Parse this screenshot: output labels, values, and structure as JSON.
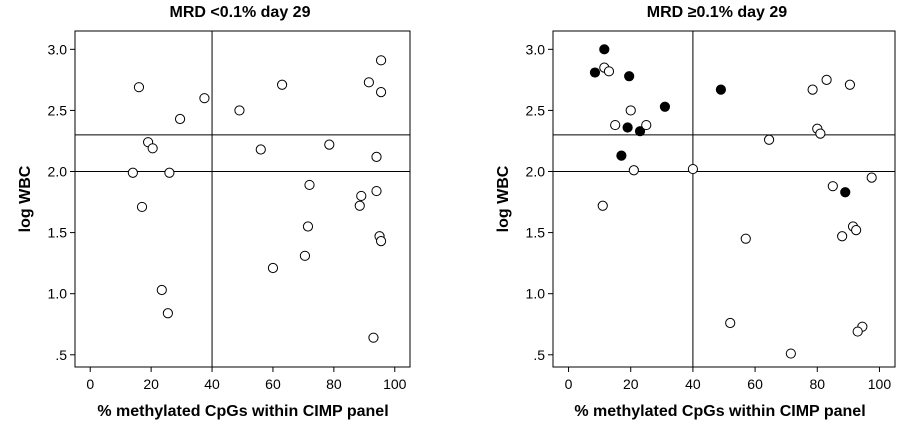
{
  "chart_data": [
    {
      "type": "scatter",
      "title": "MRD <0.1% day 29",
      "xlabel": "% methylated CpGs within CIMP panel",
      "ylabel": "log WBC",
      "xlim": [
        -5,
        105
      ],
      "ylim": [
        0.4,
        3.15
      ],
      "x_ticks": [
        0,
        20,
        40,
        60,
        80,
        100
      ],
      "x_tick_labels": [
        "0",
        "20",
        "40",
        "60",
        "80",
        "100"
      ],
      "y_ticks": [
        0.5,
        1.0,
        1.5,
        2.0,
        2.5,
        3.0
      ],
      "y_tick_labels": [
        ".5",
        "1.0",
        "1.5",
        "2.0",
        "2.5",
        "3.0"
      ],
      "reference_lines": {
        "x": [
          40
        ],
        "y": [
          2.0,
          2.3
        ]
      },
      "series": [
        {
          "marker": "open-circle",
          "color": "#000000",
          "points": [
            {
              "x": 16,
              "y": 2.69
            },
            {
              "x": 37.5,
              "y": 2.6
            },
            {
              "x": 29.5,
              "y": 2.43
            },
            {
              "x": 19,
              "y": 2.24
            },
            {
              "x": 20.5,
              "y": 2.19
            },
            {
              "x": 14,
              "y": 1.99
            },
            {
              "x": 26,
              "y": 1.99
            },
            {
              "x": 17,
              "y": 1.71
            },
            {
              "x": 23.5,
              "y": 1.03
            },
            {
              "x": 25.5,
              "y": 0.84
            },
            {
              "x": 49,
              "y": 2.5
            },
            {
              "x": 63,
              "y": 2.71
            },
            {
              "x": 56,
              "y": 2.18
            },
            {
              "x": 78.5,
              "y": 2.22
            },
            {
              "x": 72,
              "y": 1.89
            },
            {
              "x": 71.5,
              "y": 1.55
            },
            {
              "x": 70.5,
              "y": 1.31
            },
            {
              "x": 60,
              "y": 1.21
            },
            {
              "x": 91.5,
              "y": 2.73
            },
            {
              "x": 95.5,
              "y": 2.91
            },
            {
              "x": 95.5,
              "y": 2.65
            },
            {
              "x": 94,
              "y": 2.12
            },
            {
              "x": 94,
              "y": 1.84
            },
            {
              "x": 89,
              "y": 1.8
            },
            {
              "x": 88.5,
              "y": 1.72
            },
            {
              "x": 95,
              "y": 1.47
            },
            {
              "x": 95.5,
              "y": 1.43
            },
            {
              "x": 93,
              "y": 0.64
            }
          ]
        }
      ]
    },
    {
      "type": "scatter",
      "title": "MRD ≥0.1% day 29",
      "xlabel": "% methylated CpGs within CIMP panel",
      "ylabel": "log WBC",
      "xlim": [
        -5,
        105
      ],
      "ylim": [
        0.4,
        3.15
      ],
      "x_ticks": [
        0,
        20,
        40,
        60,
        80,
        100
      ],
      "x_tick_labels": [
        "0",
        "20",
        "40",
        "60",
        "80",
        "100"
      ],
      "y_ticks": [
        0.5,
        1.0,
        1.5,
        2.0,
        2.5,
        3.0
      ],
      "y_tick_labels": [
        ".5",
        "1.0",
        "1.5",
        "2.0",
        "2.5",
        "3.0"
      ],
      "reference_lines": {
        "x": [
          40
        ],
        "y": [
          2.0,
          2.3
        ]
      },
      "series": [
        {
          "marker": "filled-circle",
          "color": "#000000",
          "points": [
            {
              "x": 11.5,
              "y": 3.0
            },
            {
              "x": 8.5,
              "y": 2.81
            },
            {
              "x": 19.5,
              "y": 2.78
            },
            {
              "x": 49,
              "y": 2.67
            },
            {
              "x": 31,
              "y": 2.53
            },
            {
              "x": 19,
              "y": 2.36
            },
            {
              "x": 23,
              "y": 2.33
            },
            {
              "x": 17,
              "y": 2.13
            },
            {
              "x": 89,
              "y": 1.83
            }
          ]
        },
        {
          "marker": "open-circle",
          "color": "#000000",
          "points": [
            {
              "x": 11.5,
              "y": 2.85
            },
            {
              "x": 13,
              "y": 2.82
            },
            {
              "x": 20,
              "y": 2.5
            },
            {
              "x": 15,
              "y": 2.38
            },
            {
              "x": 25,
              "y": 2.38
            },
            {
              "x": 21,
              "y": 2.01
            },
            {
              "x": 40,
              "y": 2.02
            },
            {
              "x": 11,
              "y": 1.72
            },
            {
              "x": 64.5,
              "y": 2.26
            },
            {
              "x": 57,
              "y": 1.45
            },
            {
              "x": 52,
              "y": 0.76
            },
            {
              "x": 71.5,
              "y": 0.51
            },
            {
              "x": 83,
              "y": 2.75
            },
            {
              "x": 78.5,
              "y": 2.67
            },
            {
              "x": 90.5,
              "y": 2.71
            },
            {
              "x": 80,
              "y": 2.35
            },
            {
              "x": 81,
              "y": 2.31
            },
            {
              "x": 85,
              "y": 1.88
            },
            {
              "x": 97.5,
              "y": 1.95
            },
            {
              "x": 91.5,
              "y": 1.55
            },
            {
              "x": 92.5,
              "y": 1.52
            },
            {
              "x": 88,
              "y": 1.47
            },
            {
              "x": 94.5,
              "y": 0.73
            },
            {
              "x": 93,
              "y": 0.69
            }
          ]
        }
      ]
    }
  ]
}
